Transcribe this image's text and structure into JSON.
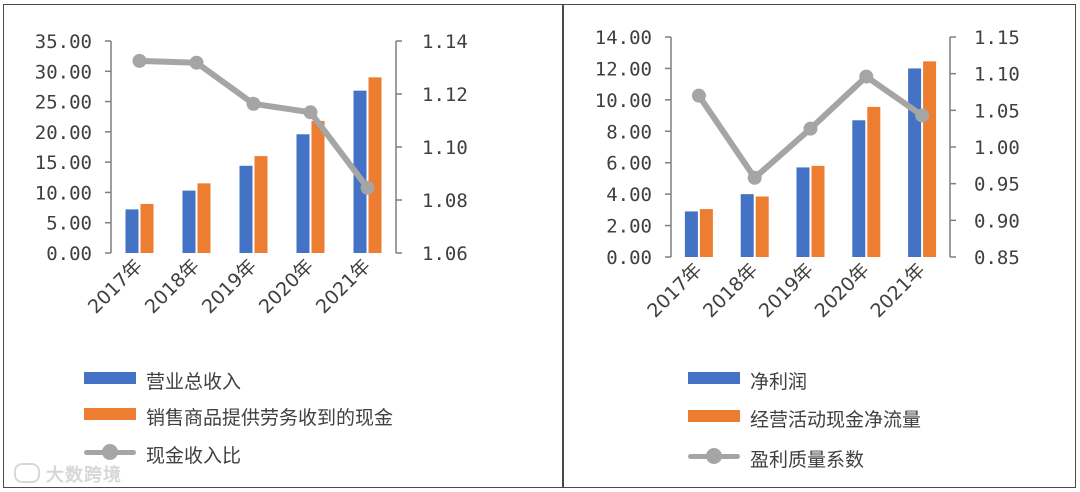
{
  "chart_data": [
    {
      "type": "bar",
      "categories": [
        "2017年",
        "2018年",
        "2019年",
        "2020年",
        "2021年"
      ],
      "series": [
        {
          "name": "营业总收入",
          "type": "bar",
          "axis": "left",
          "color": "#4472C4",
          "values": [
            7.2,
            10.3,
            14.4,
            19.6,
            26.8
          ]
        },
        {
          "name": "销售商品提供劳务收到的现金",
          "type": "bar",
          "axis": "left",
          "color": "#ED7D31",
          "values": [
            8.1,
            11.5,
            16.0,
            21.8,
            29.0
          ]
        },
        {
          "name": "现金收入比",
          "type": "line",
          "axis": "right",
          "color": "#A5A5A5",
          "values": [
            1.1325,
            1.1318,
            1.1163,
            1.1131,
            1.0846
          ]
        }
      ],
      "y_left": {
        "ticks": [
          "35.00",
          "30.00",
          "25.00",
          "20.00",
          "15.00",
          "10.00",
          "5.00",
          "0.00"
        ],
        "ylim": [
          0,
          35
        ]
      },
      "y_right": {
        "ticks": [
          "1.14",
          "1.12",
          "1.10",
          "1.08",
          "1.06"
        ],
        "ylim": [
          1.06,
          1.14
        ]
      },
      "legend_position": "bottom",
      "grid": false
    },
    {
      "type": "bar",
      "categories": [
        "2017年",
        "2018年",
        "2019年",
        "2020年",
        "2021年"
      ],
      "series": [
        {
          "name": "净利润",
          "type": "bar",
          "axis": "left",
          "color": "#4472C4",
          "values": [
            2.9,
            4.0,
            5.7,
            8.7,
            12.0
          ]
        },
        {
          "name": "经营活动现金净流量",
          "type": "bar",
          "axis": "left",
          "color": "#ED7D31",
          "values": [
            3.05,
            3.85,
            5.8,
            9.55,
            12.45
          ]
        },
        {
          "name": "盈利质量系数",
          "type": "line",
          "axis": "right",
          "color": "#A5A5A5",
          "values": [
            1.07,
            0.958,
            1.025,
            1.096,
            1.043
          ]
        }
      ],
      "y_left": {
        "ticks": [
          "14.00",
          "12.00",
          "10.00",
          "8.00",
          "6.00",
          "4.00",
          "2.00",
          "0.00"
        ],
        "ylim": [
          0,
          14
        ]
      },
      "y_right": {
        "ticks": [
          "1.15",
          "1.10",
          "1.05",
          "1.00",
          "0.95",
          "0.90",
          "0.85"
        ],
        "ylim": [
          0.85,
          1.15
        ]
      },
      "legend_position": "bottom",
      "grid": false
    }
  ],
  "watermark": "大数跨境"
}
